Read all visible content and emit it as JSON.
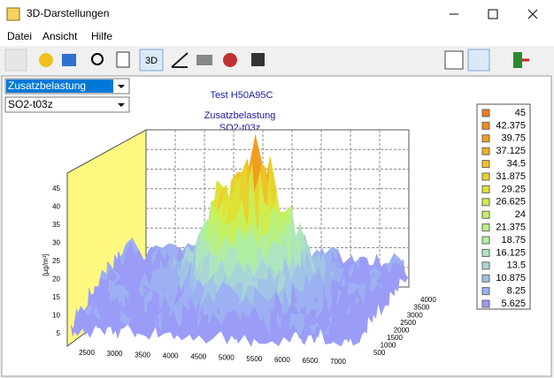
{
  "window": {
    "title": "3D-Darstellungen"
  },
  "menu": [
    "Datei",
    "Ansicht",
    "Hilfe"
  ],
  "toolbar": {
    "mode_button": "3D"
  },
  "selectors": [
    "Zusatzbelastung",
    "SO2-t03z"
  ],
  "chart": {
    "title": "Test H50A95C",
    "subtitle_lines": [
      "Zusatzbelastung",
      "SO2-t03z"
    ],
    "z_axis_label": "[µg/m³]",
    "z_ticks": [
      "5",
      "10",
      "15",
      "20",
      "25",
      "30",
      "35",
      "40",
      "45"
    ],
    "x_ticks": [
      "2500",
      "3000",
      "3500",
      "4000",
      "4500",
      "5000",
      "5500",
      "6000",
      "6500",
      "7000"
    ],
    "y_ticks": [
      "500",
      "1000",
      "1500",
      "2000",
      "2500",
      "3000",
      "3500",
      "4000"
    ],
    "legend": [
      {
        "label": "45",
        "color": "#f07a1a"
      },
      {
        "label": "42.375",
        "color": "#f08c1c"
      },
      {
        "label": "39.75",
        "color": "#f09e20"
      },
      {
        "label": "37.125",
        "color": "#f0b022"
      },
      {
        "label": "34.5",
        "color": "#f0c228"
      },
      {
        "label": "31.875",
        "color": "#e8d22c"
      },
      {
        "label": "29.25",
        "color": "#e0e036"
      },
      {
        "label": "26.625",
        "color": "#d4ec48"
      },
      {
        "label": "24",
        "color": "#c4f064"
      },
      {
        "label": "21.375",
        "color": "#b8f084"
      },
      {
        "label": "18.75",
        "color": "#b0eea2"
      },
      {
        "label": "16.125",
        "color": "#aee4c0"
      },
      {
        "label": "13.5",
        "color": "#a8d6d6"
      },
      {
        "label": "10.875",
        "color": "#a0c4e6"
      },
      {
        "label": "8.25",
        "color": "#9cb0f2"
      },
      {
        "label": "5.625",
        "color": "#9a9cf8"
      }
    ]
  }
}
